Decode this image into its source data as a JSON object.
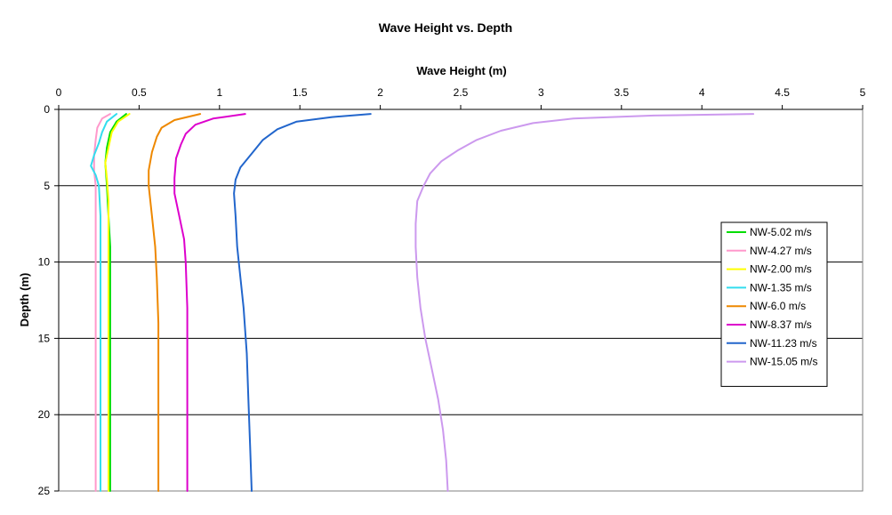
{
  "chart_data": {
    "type": "line",
    "title": "Wave Height vs. Depth",
    "xlabel": "Wave Height (m)",
    "ylabel": "Depth (m)",
    "xlim": [
      0,
      5
    ],
    "ylim": [
      0,
      25
    ],
    "y_inverted": true,
    "x_axis_position": "top",
    "x_ticks": [
      "0",
      "0.5",
      "1",
      "1.5",
      "2",
      "2.5",
      "3",
      "3.5",
      "4",
      "4.5",
      "5"
    ],
    "y_ticks": [
      "0",
      "5",
      "10",
      "15",
      "20",
      "25"
    ],
    "grid": "horizontal",
    "legend_position": "right",
    "series": [
      {
        "name": "NW-5.02 m/s",
        "color": "#00dd00",
        "points": [
          [
            0.42,
            0.3
          ],
          [
            0.36,
            0.8
          ],
          [
            0.32,
            1.5
          ],
          [
            0.3,
            2.5
          ],
          [
            0.29,
            3.5
          ],
          [
            0.3,
            5
          ],
          [
            0.31,
            7
          ],
          [
            0.32,
            9
          ],
          [
            0.32,
            12
          ],
          [
            0.32,
            15
          ],
          [
            0.32,
            20
          ],
          [
            0.32,
            25
          ]
        ]
      },
      {
        "name": "NW-4.27 m/s",
        "color": "#ff99cc",
        "points": [
          [
            0.32,
            0.3
          ],
          [
            0.27,
            0.6
          ],
          [
            0.24,
            1.2
          ],
          [
            0.23,
            2
          ],
          [
            0.22,
            3
          ],
          [
            0.22,
            4
          ],
          [
            0.23,
            5
          ],
          [
            0.23,
            7
          ],
          [
            0.23,
            10
          ],
          [
            0.23,
            15
          ],
          [
            0.23,
            20
          ],
          [
            0.23,
            25
          ]
        ]
      },
      {
        "name": "NW-2.00 m/s",
        "color": "#ffff00",
        "points": [
          [
            0.44,
            0.3
          ],
          [
            0.37,
            0.8
          ],
          [
            0.33,
            1.5
          ],
          [
            0.31,
            2.5
          ],
          [
            0.29,
            3.5
          ],
          [
            0.3,
            4.5
          ],
          [
            0.31,
            6
          ],
          [
            0.31,
            8
          ],
          [
            0.31,
            12
          ],
          [
            0.31,
            18
          ],
          [
            0.31,
            25
          ]
        ]
      },
      {
        "name": "NW-1.35 m/s",
        "color": "#33ddee",
        "points": [
          [
            0.36,
            0.3
          ],
          [
            0.3,
            0.8
          ],
          [
            0.27,
            1.5
          ],
          [
            0.25,
            2.2
          ],
          [
            0.22,
            3
          ],
          [
            0.2,
            3.7
          ],
          [
            0.23,
            4.3
          ],
          [
            0.25,
            5
          ],
          [
            0.26,
            7
          ],
          [
            0.26,
            10
          ],
          [
            0.26,
            15
          ],
          [
            0.26,
            20
          ],
          [
            0.26,
            25
          ]
        ]
      },
      {
        "name": "NW-6.0 m/s",
        "color": "#ee8800",
        "points": [
          [
            0.88,
            0.3
          ],
          [
            0.72,
            0.7
          ],
          [
            0.64,
            1.2
          ],
          [
            0.61,
            1.8
          ],
          [
            0.58,
            2.8
          ],
          [
            0.56,
            4
          ],
          [
            0.56,
            5
          ],
          [
            0.58,
            7
          ],
          [
            0.6,
            9
          ],
          [
            0.61,
            11
          ],
          [
            0.62,
            14
          ],
          [
            0.62,
            18
          ],
          [
            0.62,
            25
          ]
        ]
      },
      {
        "name": "NW-8.37 m/s",
        "color": "#dd00cc",
        "points": [
          [
            1.16,
            0.3
          ],
          [
            0.96,
            0.6
          ],
          [
            0.85,
            1
          ],
          [
            0.79,
            1.6
          ],
          [
            0.76,
            2.3
          ],
          [
            0.73,
            3.2
          ],
          [
            0.72,
            4.5
          ],
          [
            0.72,
            5.5
          ],
          [
            0.75,
            7
          ],
          [
            0.78,
            8.5
          ],
          [
            0.79,
            10
          ],
          [
            0.8,
            13
          ],
          [
            0.8,
            16
          ],
          [
            0.8,
            20
          ],
          [
            0.8,
            25
          ]
        ]
      },
      {
        "name": "NW-11.23 m/s",
        "color": "#2266cc",
        "points": [
          [
            1.94,
            0.3
          ],
          [
            1.7,
            0.5
          ],
          [
            1.48,
            0.8
          ],
          [
            1.36,
            1.3
          ],
          [
            1.27,
            2
          ],
          [
            1.2,
            2.9
          ],
          [
            1.13,
            3.8
          ],
          [
            1.1,
            4.6
          ],
          [
            1.09,
            5.5
          ],
          [
            1.1,
            7
          ],
          [
            1.11,
            9
          ],
          [
            1.13,
            11
          ],
          [
            1.15,
            13
          ],
          [
            1.17,
            16
          ],
          [
            1.18,
            19
          ],
          [
            1.19,
            22
          ],
          [
            1.2,
            25
          ]
        ]
      },
      {
        "name": "NW-15.05 m/s",
        "color": "#cc99ee",
        "points": [
          [
            4.32,
            0.3
          ],
          [
            3.7,
            0.4
          ],
          [
            3.2,
            0.6
          ],
          [
            2.95,
            0.9
          ],
          [
            2.75,
            1.4
          ],
          [
            2.6,
            2
          ],
          [
            2.48,
            2.7
          ],
          [
            2.38,
            3.4
          ],
          [
            2.31,
            4.2
          ],
          [
            2.27,
            5
          ],
          [
            2.23,
            6
          ],
          [
            2.22,
            7.5
          ],
          [
            2.22,
            9
          ],
          [
            2.23,
            11
          ],
          [
            2.25,
            13
          ],
          [
            2.28,
            15
          ],
          [
            2.32,
            17
          ],
          [
            2.36,
            19
          ],
          [
            2.39,
            21
          ],
          [
            2.41,
            23
          ],
          [
            2.42,
            25
          ]
        ]
      }
    ]
  }
}
